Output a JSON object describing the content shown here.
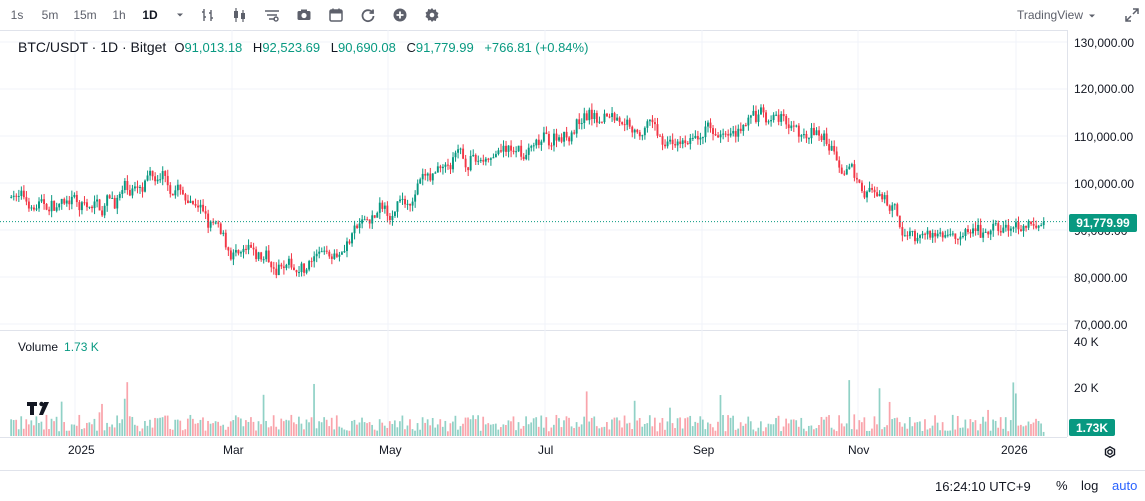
{
  "toolbar": {
    "intervals": [
      "1s",
      "5m",
      "15m",
      "1h",
      "1D"
    ],
    "active_interval": "1D",
    "tools": [
      "interval-dropdown-icon",
      "bar-style-icon",
      "candle-style-icon",
      "indicators-icon",
      "screenshot-icon",
      "calendar-icon",
      "replay-icon",
      "add-icon",
      "settings-icon"
    ],
    "brand": "TradingView",
    "brand_dropdown_icon": "chevron-down-icon",
    "fullscreen_icon": "expand-icon"
  },
  "legend": {
    "symbol": "BTC/USDT · 1D · Bitget",
    "open_label": "O",
    "open": "91,013.18",
    "high_label": "H",
    "high": "92,523.69",
    "low_label": "L",
    "low": "90,690.08",
    "close_label": "C",
    "close": "91,779.99",
    "change": "+766.81 (+0.84%)"
  },
  "volume_legend": {
    "label": "Volume",
    "value": "1.73 K"
  },
  "price_axis": {
    "labels": [
      "130,000.00",
      "120,000.00",
      "110,000.00",
      "100,000.00",
      "90,000.00",
      "80,000.00",
      "70,000.00"
    ],
    "last_price": "91,779.99"
  },
  "volume_axis": {
    "labels": [
      "40 K",
      "20 K"
    ],
    "last_volume": "1.73K",
    "settings_icon": "gear-icon"
  },
  "time_axis": {
    "labels": [
      "2025",
      "Mar",
      "May",
      "Jul",
      "Sep",
      "Nov",
      "2026"
    ]
  },
  "bottom_bar": {
    "time": "16:24:10 UTC+9",
    "percent": "%",
    "log": "log",
    "auto": "auto"
  },
  "colors": {
    "up": "#089981",
    "down": "#f23645",
    "grid": "#f0f3fa",
    "auto": "#2962ff"
  },
  "chart_data": {
    "type": "candlestick",
    "symbol": "BTC/USDT",
    "interval": "1D",
    "exchange": "Bitget",
    "ylim": [
      70000,
      130000
    ],
    "volume_ylim": [
      0,
      40000
    ],
    "last_price": 91779.99,
    "last_volume": 1730,
    "x_ticks": [
      "2025",
      "Mar",
      "May",
      "Jul",
      "Sep",
      "Nov",
      "2026"
    ],
    "approx_monthly_closes": [
      {
        "month": "2024-12",
        "close": 93500
      },
      {
        "month": "2025-01",
        "close": 102400
      },
      {
        "month": "2025-02",
        "close": 84300
      },
      {
        "month": "2025-03",
        "close": 82500
      },
      {
        "month": "2025-04",
        "close": 94200
      },
      {
        "month": "2025-05",
        "close": 104600
      },
      {
        "month": "2025-06",
        "close": 107100
      },
      {
        "month": "2025-07",
        "close": 115700
      },
      {
        "month": "2025-08",
        "close": 108200
      },
      {
        "month": "2025-09",
        "close": 114000
      },
      {
        "month": "2025-10",
        "close": 109500
      },
      {
        "month": "2025-11",
        "close": 90400
      },
      {
        "month": "2025-12",
        "close": 87800
      },
      {
        "month": "2026-01",
        "close": 91780
      }
    ],
    "grid": true
  }
}
